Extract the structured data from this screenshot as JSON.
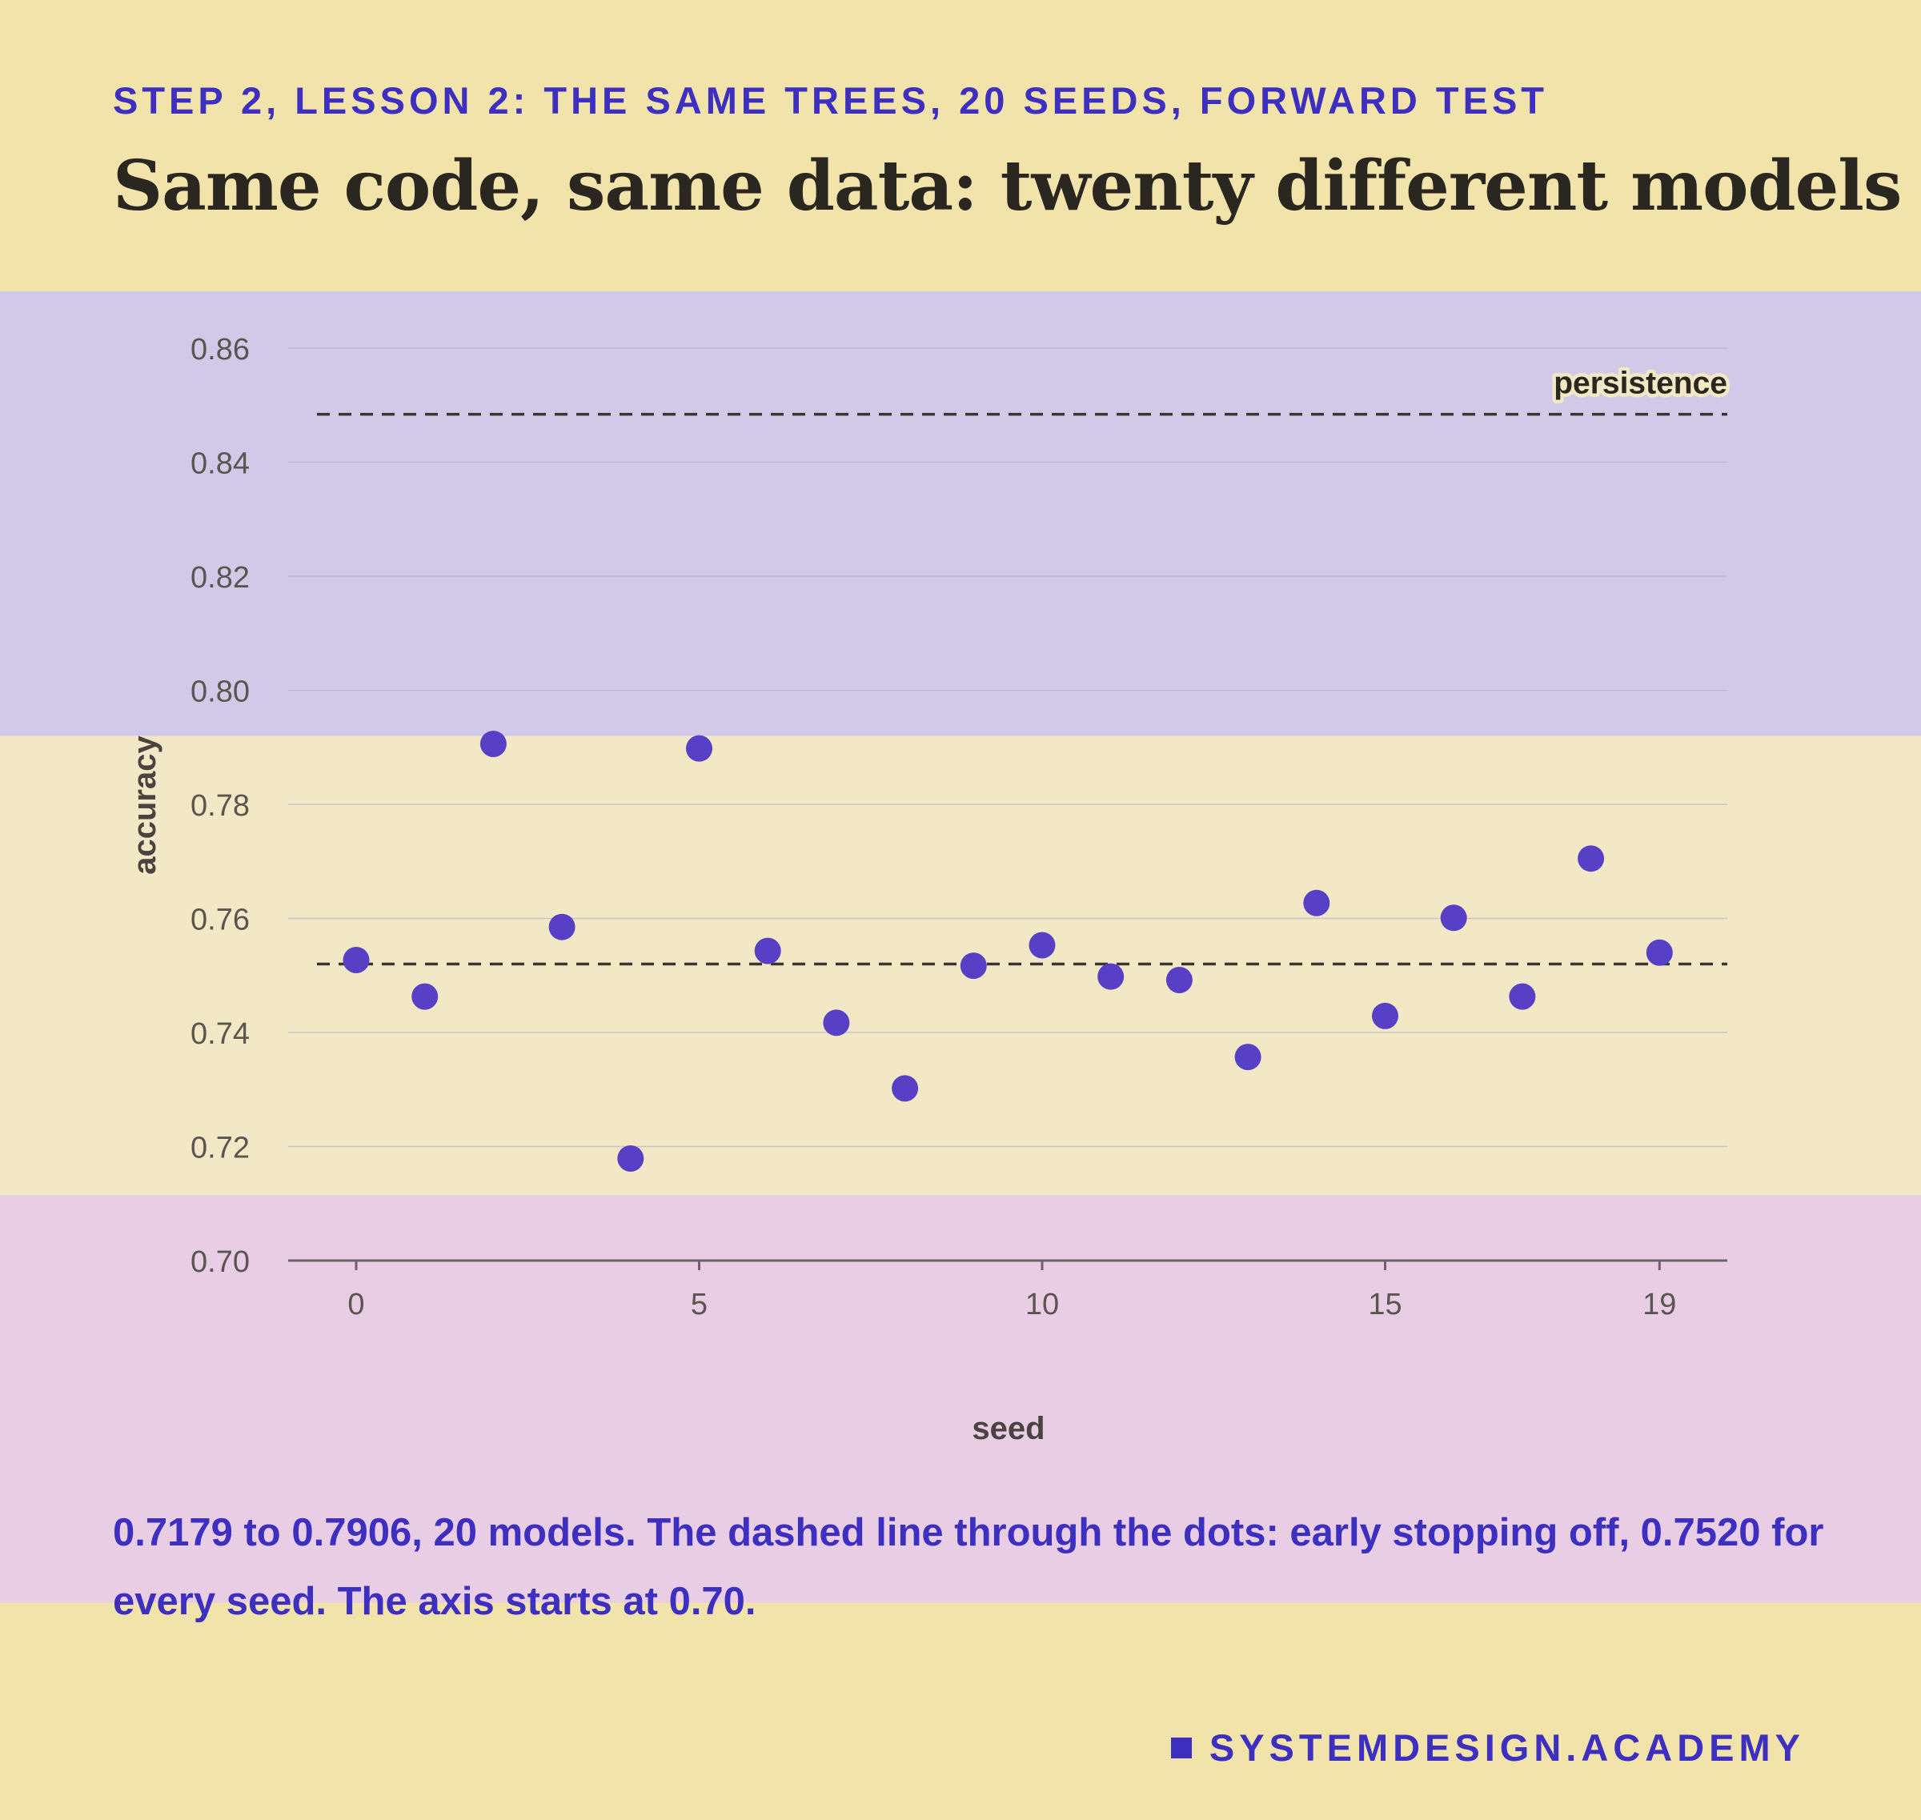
{
  "header": {
    "kicker": "STEP 2, LESSON 2: THE SAME TREES, 20 SEEDS, FORWARD TEST",
    "title": "Same code, same data: twenty different models"
  },
  "caption": "0.7179 to 0.7906, 20 models. The dashed line through the dots: early stopping off, 0.7520 for every seed. The axis starts at 0.70.",
  "brand": {
    "icon": "square-icon",
    "label": "SYSTEMDESIGN.ACADEMY"
  },
  "colors": {
    "background": "#f1e3a9",
    "band_top": "#d0cae8",
    "band_middle": "#f2e8c6",
    "band_bottom": "#e9cde4",
    "accent": "#3d2fbf",
    "dot": "#5840c6",
    "ink": "#2a2620",
    "axis_text": "#5b5550",
    "grid": "#b9b2cf"
  },
  "chart_data": {
    "type": "scatter",
    "xlabel": "seed",
    "ylabel": "accuracy",
    "xlim": [
      -1,
      20
    ],
    "ylim": [
      0.7,
      0.86
    ],
    "yticks": [
      0.7,
      0.72,
      0.74,
      0.76,
      0.78,
      0.8,
      0.82,
      0.84,
      0.86
    ],
    "ytick_labels": [
      "0.70",
      "0.72",
      "0.74",
      "0.76",
      "0.78",
      "0.80",
      "0.82",
      "0.84",
      "0.86"
    ],
    "xticks": [
      0,
      5,
      10,
      15,
      19
    ],
    "xtick_labels": [
      "0",
      "5",
      "10",
      "15",
      "19"
    ],
    "grid": true,
    "x": [
      0,
      1,
      2,
      3,
      4,
      5,
      6,
      7,
      8,
      9,
      10,
      11,
      12,
      13,
      14,
      15,
      16,
      17,
      18,
      19
    ],
    "y": [
      0.7527,
      0.7463,
      0.7906,
      0.7585,
      0.7179,
      0.7898,
      0.7543,
      0.7417,
      0.7302,
      0.7517,
      0.7553,
      0.7498,
      0.7492,
      0.7357,
      0.7627,
      0.7429,
      0.7601,
      0.7463,
      0.7705,
      0.754
    ],
    "reference_lines": [
      {
        "label": "persistence",
        "value": 0.8484
      },
      {
        "label": "",
        "value": 0.752
      }
    ],
    "bands": [
      {
        "from": 0.792,
        "to": 0.87,
        "color": "#d0cae8"
      },
      {
        "from": 0.7115,
        "to": 0.792,
        "color": "#f2e8c6"
      },
      {
        "from": 0.64,
        "to": 0.7115,
        "color": "#e9cde4"
      }
    ]
  }
}
